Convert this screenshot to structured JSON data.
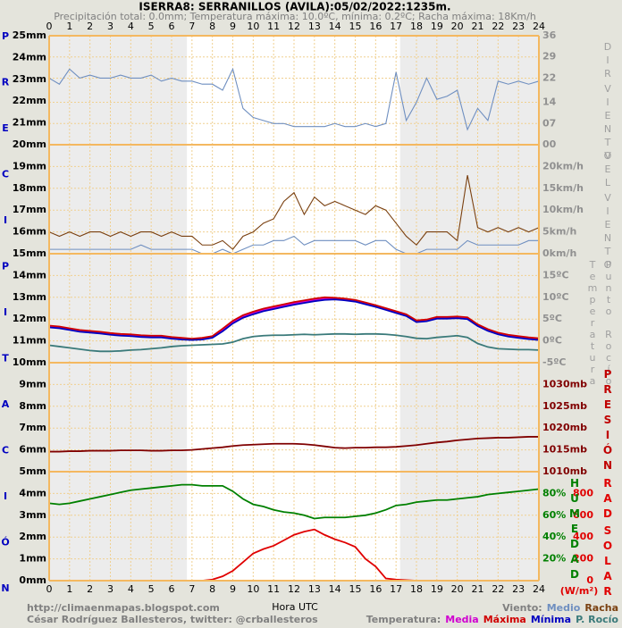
{
  "chart_data": {
    "type": "multi-panel-line",
    "title": "ISERRA8: SERRANILLOS (AVILA):05/02/2022:1235m.",
    "subtitle": "Precipitación total: 0.0mm; Temperatura máxima: 10.0ºC, mínima: 0.2ºC; Racha máxima: 18Km/h",
    "xlabel": "Hora UTC",
    "footer": [
      "http://climaenmapas.blogspot.com",
      "César Rodríguez Ballesteros, twitter: @crballesteros"
    ],
    "legends": [
      {
        "label": "Viento:",
        "series": [
          [
            1,
            0
          ],
          [
            1,
            1
          ]
        ]
      },
      {
        "label": "Temperatura:",
        "series": [
          [
            2,
            0
          ],
          [
            2,
            1
          ],
          [
            2,
            2
          ],
          [
            2,
            3
          ]
        ]
      }
    ],
    "ylabel": "PRECIPITACIÓN",
    "ylim": [
      0,
      25
    ],
    "yticks": [
      {
        "value": 0,
        "label": "0mm"
      },
      {
        "value": 1,
        "label": "1mm"
      },
      {
        "value": 2,
        "label": "2mm"
      },
      {
        "value": 3,
        "label": "3mm"
      },
      {
        "value": 4,
        "label": "4mm"
      },
      {
        "value": 5,
        "label": "5mm"
      },
      {
        "value": 6,
        "label": "6mm"
      },
      {
        "value": 7,
        "label": "7mm"
      },
      {
        "value": 8,
        "label": "8mm"
      },
      {
        "value": 9,
        "label": "9mm"
      },
      {
        "value": 10,
        "label": "10mm"
      },
      {
        "value": 11,
        "label": "11mm"
      },
      {
        "value": 12,
        "label": "12mm"
      },
      {
        "value": 13,
        "label": "13mm"
      },
      {
        "value": 14,
        "label": "14mm"
      },
      {
        "value": 15,
        "label": "15mm"
      },
      {
        "value": 16,
        "label": "16mm"
      },
      {
        "value": 17,
        "label": "17mm"
      },
      {
        "value": 18,
        "label": "18mm"
      },
      {
        "value": 19,
        "label": "19mm"
      },
      {
        "value": 20,
        "label": "20mm"
      },
      {
        "value": 21,
        "label": "21mm"
      },
      {
        "value": 22,
        "label": "22mm"
      },
      {
        "value": 23,
        "label": "23mm"
      },
      {
        "value": 24,
        "label": "24mm"
      },
      {
        "value": 25,
        "label": "25mm"
      }
    ],
    "xlim": [
      0,
      24
    ],
    "xticks": [
      0,
      1,
      2,
      3,
      4,
      5,
      6,
      7,
      8,
      9,
      10,
      11,
      12,
      13,
      14,
      15,
      16,
      17,
      18,
      19,
      20,
      21,
      22,
      23,
      24
    ],
    "grid": true,
    "shaded_hours": [
      [
        0,
        6.75
      ],
      [
        17.2,
        24
      ]
    ],
    "x": [
      0,
      0.5,
      1,
      1.5,
      2,
      2.5,
      3,
      3.5,
      4,
      4.5,
      5,
      5.5,
      6,
      6.5,
      7,
      7.5,
      8,
      8.5,
      9,
      9.5,
      10,
      10.5,
      11,
      11.5,
      12,
      12.5,
      13,
      13.5,
      14,
      14.5,
      15,
      15.5,
      16,
      16.5,
      17,
      17.5,
      18,
      18.5,
      19,
      19.5,
      20,
      20.5,
      21,
      21.5,
      22,
      22.5,
      23,
      23.5,
      24
    ],
    "panels": [
      {
        "ylabel": [
          "DIR",
          "VIENTO"
        ],
        "label_color": "#a0a0a0",
        "tick_color": "#909090",
        "ylim": [
          0,
          36
        ],
        "yticks": [
          {
            "value": 0,
            "label": "00"
          },
          {
            "value": 7,
            "label": "07"
          },
          14,
          22,
          29,
          36
        ],
        "series": [
          {
            "color": "#6f8fc0",
            "values": [
              22,
              20,
              25,
              22,
              23,
              22,
              22,
              23,
              22,
              22,
              23,
              21,
              22,
              21,
              21,
              20,
              20,
              18,
              25,
              12,
              9,
              8,
              7,
              7,
              6,
              6,
              6,
              6,
              7,
              6,
              6,
              7,
              6,
              7,
              24,
              8,
              14,
              22,
              15,
              16,
              18,
              5,
              12,
              8,
              21,
              20,
              21,
              20,
              21
            ]
          }
        ]
      },
      {
        "ylabel": [
          "VEL",
          "VIENTO"
        ],
        "label_color": "#a0a0a0",
        "tick_color": "#909090",
        "ylim": [
          0,
          25
        ],
        "yticks": [
          {
            "value": 0,
            "label": "0km/h"
          },
          {
            "value": 5,
            "label": "5km/h"
          },
          {
            "value": 10,
            "label": "10km/h"
          },
          {
            "value": 15,
            "label": "15km/h"
          },
          {
            "value": 20,
            "label": "20km/h"
          }
        ],
        "series": [
          {
            "name": "Medio",
            "color": "#6f8fc0",
            "values": [
              1,
              1,
              1,
              1,
              1,
              1,
              1,
              1,
              1,
              2,
              1,
              1,
              1,
              1,
              1,
              0,
              0,
              1,
              0,
              1,
              2,
              2,
              3,
              3,
              4,
              2,
              3,
              3,
              3,
              3,
              3,
              2,
              3,
              3,
              1,
              0,
              0,
              1,
              1,
              1,
              1,
              3,
              2,
              2,
              2,
              2,
              2,
              3,
              3
            ]
          },
          {
            "name": "Racha",
            "color": "#7a4010",
            "values": [
              5,
              4,
              5,
              4,
              5,
              5,
              4,
              5,
              4,
              5,
              5,
              4,
              5,
              4,
              4,
              2,
              2,
              3,
              1,
              4,
              5,
              7,
              8,
              12,
              14,
              9,
              13,
              11,
              12,
              11,
              10,
              9,
              11,
              10,
              7,
              4,
              2,
              5,
              5,
              5,
              3,
              18,
              6,
              5,
              6,
              5,
              6,
              5,
              6
            ]
          }
        ]
      },
      {
        "ylabel": [
          "Temperatura",
          "Punto Rocío"
        ],
        "label_color": "#a0a0a0",
        "tick_color": "#909090",
        "ylim": [
          -5,
          20
        ],
        "yticks": [
          {
            "value": -5,
            "label": "-5ºC"
          },
          {
            "value": 0,
            "label": "0ºC"
          },
          {
            "value": 5,
            "label": "5ºC"
          },
          {
            "value": 10,
            "label": "10ºC"
          },
          {
            "value": 15,
            "label": "15ºC"
          }
        ],
        "series": [
          {
            "name": "Media",
            "color": "#d000d0",
            "values": [
              3.3,
              3.1,
              2.7,
              2.3,
              2.1,
              1.9,
              1.6,
              1.4,
              1.3,
              1.1,
              1.0,
              1.0,
              0.7,
              0.5,
              0.3,
              0.5,
              0.9,
              2.5,
              4.3,
              5.6,
              6.4,
              7.1,
              7.6,
              8.1,
              8.6,
              9.0,
              9.4,
              9.7,
              9.7,
              9.5,
              9.2,
              8.6,
              8.0,
              7.3,
              6.6,
              5.9,
              4.5,
              4.7,
              5.3,
              5.3,
              5.4,
              5.2,
              3.6,
              2.5,
              1.7,
              1.2,
              0.9,
              0.6,
              0.4
            ]
          },
          {
            "name": "Máxima",
            "color": "#d00000",
            "values": [
              3.5,
              3.3,
              2.9,
              2.5,
              2.3,
              2.1,
              1.8,
              1.6,
              1.5,
              1.3,
              1.2,
              1.2,
              0.9,
              0.7,
              0.5,
              0.7,
              1.1,
              2.8,
              4.6,
              5.9,
              6.7,
              7.4,
              7.9,
              8.4,
              8.9,
              9.3,
              9.7,
              10.0,
              9.9,
              9.7,
              9.4,
              8.8,
              8.2,
              7.5,
              6.8,
              6.1,
              4.7,
              4.9,
              5.5,
              5.5,
              5.6,
              5.4,
              3.8,
              2.7,
              1.9,
              1.4,
              1.1,
              0.8,
              0.6
            ]
          },
          {
            "name": "Mínima",
            "color": "#0000c0",
            "values": [
              3.1,
              2.9,
              2.5,
              2.1,
              1.9,
              1.7,
              1.4,
              1.2,
              1.1,
              0.9,
              0.8,
              0.8,
              0.5,
              0.3,
              0.2,
              0.3,
              0.7,
              2.2,
              4.0,
              5.3,
              6.1,
              6.8,
              7.3,
              7.8,
              8.3,
              8.7,
              9.1,
              9.4,
              9.5,
              9.3,
              9.0,
              8.4,
              7.8,
              7.1,
              6.4,
              5.7,
              4.3,
              4.5,
              5.1,
              5.1,
              5.2,
              5.0,
              3.4,
              2.3,
              1.5,
              1.0,
              0.7,
              0.4,
              0.2
            ]
          },
          {
            "name": "P. Rocío",
            "color": "#3a7a7a",
            "values": [
              -1.0,
              -1.3,
              -1.6,
              -1.9,
              -2.2,
              -2.4,
              -2.4,
              -2.3,
              -2.1,
              -2.0,
              -1.8,
              -1.6,
              -1.3,
              -1.1,
              -1.0,
              -0.9,
              -0.8,
              -0.7,
              -0.3,
              0.5,
              1.0,
              1.2,
              1.3,
              1.3,
              1.4,
              1.5,
              1.4,
              1.5,
              1.6,
              1.6,
              1.5,
              1.6,
              1.6,
              1.5,
              1.3,
              1.0,
              0.6,
              0.5,
              0.8,
              1.0,
              1.2,
              0.8,
              -0.6,
              -1.4,
              -1.8,
              -1.9,
              -2.0,
              -2.0,
              -2.1
            ]
          }
        ]
      },
      {
        "ylabel": [
          "PRESIÓN"
        ],
        "label_color": "#c00000",
        "tick_color": "#800000",
        "ylim": [
          1010,
          1035
        ],
        "yticks": [
          {
            "value": 1010,
            "label": "1010mb"
          },
          {
            "value": 1015,
            "label": "1015mb"
          },
          {
            "value": 1020,
            "label": "1020mb"
          },
          {
            "value": 1025,
            "label": "1025mb"
          },
          {
            "value": 1030,
            "label": "1030mb"
          }
        ],
        "series": [
          {
            "color": "#800000",
            "values": [
              1014.6,
              1014.6,
              1014.7,
              1014.7,
              1014.8,
              1014.8,
              1014.8,
              1014.9,
              1014.9,
              1014.9,
              1014.8,
              1014.8,
              1014.9,
              1014.9,
              1015.0,
              1015.2,
              1015.4,
              1015.6,
              1015.9,
              1016.1,
              1016.2,
              1016.3,
              1016.4,
              1016.4,
              1016.4,
              1016.3,
              1016.1,
              1015.8,
              1015.5,
              1015.4,
              1015.5,
              1015.5,
              1015.6,
              1015.6,
              1015.7,
              1015.9,
              1016.1,
              1016.4,
              1016.7,
              1016.9,
              1017.2,
              1017.4,
              1017.6,
              1017.7,
              1017.8,
              1017.8,
              1017.9,
              1018.0,
              1018.0
            ]
          }
        ]
      },
      {
        "ylabel": [
          "HUMEDAD"
        ],
        "label_color": "#008000",
        "tick_color": "#008000",
        "ylim": [
          0,
          100
        ],
        "yticks": [
          {
            "value": 20,
            "label": "20%"
          },
          {
            "value": 40,
            "label": "40%"
          },
          {
            "value": 60,
            "label": "60%"
          },
          {
            "value": 80,
            "label": "80%"
          }
        ],
        "y2label": [
          "RAD",
          "SOLAR"
        ],
        "y2label_color": "#e00000",
        "y2unit": "(W/m²)",
        "y2lim": [
          0,
          1000
        ],
        "y2ticks": [
          0,
          200,
          400,
          600,
          800
        ],
        "series": [
          {
            "color": "#008000",
            "values": [
              71,
              70,
              71,
              73,
              75,
              77,
              79,
              81,
              83,
              84,
              85,
              86,
              87,
              88,
              88,
              87,
              87,
              87,
              82,
              75,
              70,
              68,
              65,
              63,
              62,
              60,
              57,
              58,
              58,
              58,
              59,
              60,
              62,
              65,
              69,
              70,
              72,
              73,
              74,
              74,
              75,
              76,
              77,
              79,
              80,
              81,
              82,
              83,
              84
            ]
          },
          {
            "color": "#e00000",
            "axis": "y2",
            "values": [
              0,
              0,
              0,
              0,
              0,
              0,
              0,
              0,
              0,
              0,
              0,
              0,
              0,
              0,
              0,
              0,
              10,
              40,
              90,
              170,
              250,
              290,
              320,
              370,
              420,
              450,
              470,
              420,
              380,
              350,
              310,
              200,
              130,
              20,
              10,
              5,
              0,
              0,
              0,
              0,
              0,
              0,
              0,
              0,
              0,
              0,
              0,
              0,
              0
            ]
          }
        ]
      }
    ]
  }
}
